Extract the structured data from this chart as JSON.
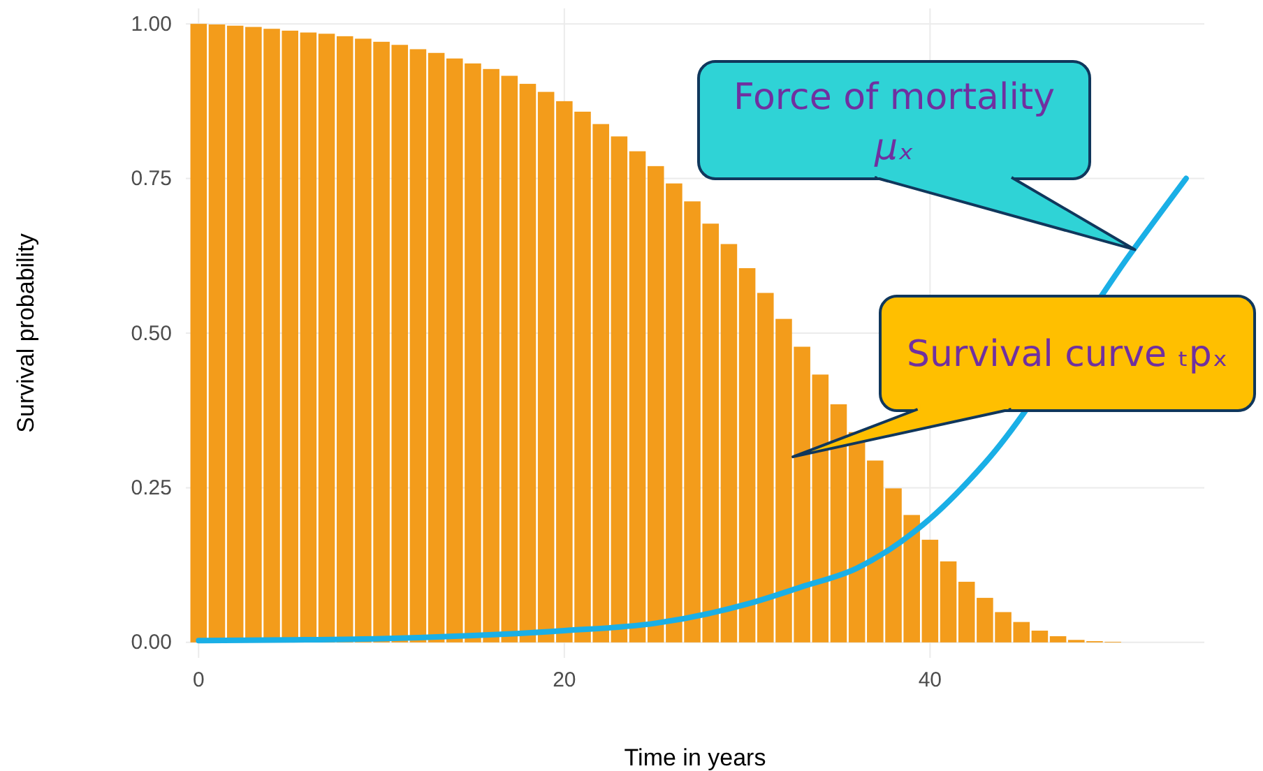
{
  "chart_data": {
    "type": "bar",
    "xlabel": "Time in years",
    "ylabel": "Survival probability",
    "x": [
      0,
      1,
      2,
      3,
      4,
      5,
      6,
      7,
      8,
      9,
      10,
      11,
      12,
      13,
      14,
      15,
      16,
      17,
      18,
      19,
      20,
      21,
      22,
      23,
      24,
      25,
      26,
      27,
      28,
      29,
      30,
      31,
      32,
      33,
      34,
      35,
      36,
      37,
      38,
      39,
      40,
      41,
      42,
      43,
      44,
      45,
      46,
      47,
      48,
      49,
      50
    ],
    "series": [
      {
        "color": "#f39c1b",
        "values": [
          1.0,
          0.999,
          0.997,
          0.995,
          0.992,
          0.989,
          0.986,
          0.984,
          0.98,
          0.976,
          0.971,
          0.966,
          0.959,
          0.953,
          0.944,
          0.936,
          0.927,
          0.916,
          0.903,
          0.89,
          0.875,
          0.858,
          0.838,
          0.818,
          0.794,
          0.77,
          0.742,
          0.713,
          0.677,
          0.644,
          0.605,
          0.565,
          0.523,
          0.478,
          0.433,
          0.385,
          0.34,
          0.294,
          0.249,
          0.206,
          0.166,
          0.131,
          0.098,
          0.072,
          0.049,
          0.033,
          0.019,
          0.01,
          0.004,
          0.002,
          0.001
        ]
      },
      {
        "type": "line",
        "color": "#1aafe6",
        "x": [
          0,
          5,
          10,
          15,
          20,
          25,
          30,
          33,
          36,
          40,
          43,
          51,
          54
        ],
        "values": [
          0.003,
          0.004,
          0.006,
          0.011,
          0.019,
          0.031,
          0.062,
          0.09,
          0.12,
          0.2,
          0.29,
          0.63,
          0.75
        ]
      }
    ],
    "xlim": [
      -0.7,
      55
    ],
    "xticks": [
      0,
      20,
      40
    ],
    "ylim": [
      -0.025,
      1.025
    ],
    "yticks": [
      {
        "value": 0,
        "label": "0.00"
      },
      {
        "value": 0.25,
        "label": "0.25"
      },
      {
        "value": 0.5,
        "label": "0.50"
      },
      {
        "value": 0.75,
        "label": "0.75"
      },
      {
        "value": 1,
        "label": "1.00"
      }
    ],
    "grid": true,
    "annotations": [
      {
        "text": "Force of mortality μₓ",
        "x": 51.2,
        "y": 0.635
      },
      {
        "text": "Survival curve ₜpₓ",
        "x": 32.5,
        "y": 0.3
      }
    ]
  }
}
